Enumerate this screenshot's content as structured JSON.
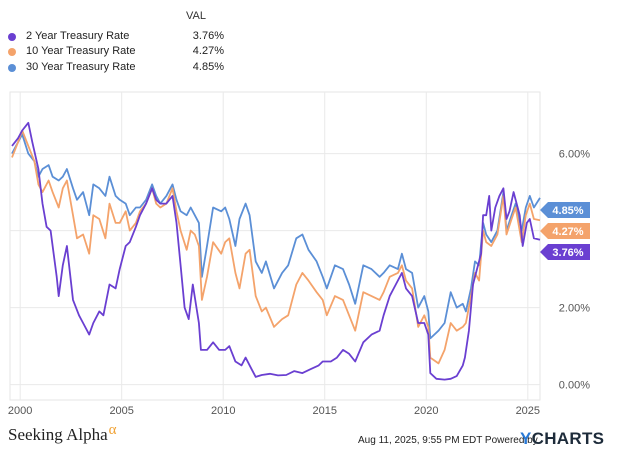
{
  "legend": {
    "header": "VAL",
    "items": [
      {
        "name": "2 Year Treasury Rate",
        "value": "3.76%",
        "color": "#6a3fd1"
      },
      {
        "name": "10 Year Treasury Rate",
        "value": "4.27%",
        "color": "#f4a36b"
      },
      {
        "name": "30 Year Treasury Rate",
        "value": "4.85%",
        "color": "#5b8fd6"
      }
    ]
  },
  "footer": {
    "brand": "Seeking Alpha",
    "brand_symbol": "α",
    "timestamp": "Aug 11, 2025, 9:55 PM EDT Powered by",
    "ycharts_y": "Y",
    "ycharts_rest": "CHARTS"
  },
  "chart_data": {
    "type": "line",
    "xlim": [
      1999.5,
      2025.6
    ],
    "ylim": [
      -0.4,
      7.6
    ],
    "x_ticks": [
      2000,
      2005,
      2010,
      2015,
      2020,
      2025
    ],
    "x_tick_labels": [
      "2000",
      "2005",
      "2010",
      "2015",
      "2020",
      "2025"
    ],
    "y_ticks": [
      0,
      2,
      4,
      6
    ],
    "y_tick_labels": [
      "0.00%",
      "2.00%",
      "4.00%",
      "6.00%"
    ],
    "grid": true,
    "legend_position": "top-left",
    "end_labels": [
      "4.85%",
      "4.27%",
      "3.76%"
    ],
    "series": [
      {
        "name": "2 Year Treasury Rate",
        "color": "#6a3fd1",
        "points": [
          [
            1999.6,
            6.2
          ],
          [
            1999.9,
            6.4
          ],
          [
            2000.1,
            6.6
          ],
          [
            2000.4,
            6.8
          ],
          [
            2000.6,
            6.3
          ],
          [
            2000.9,
            5.6
          ],
          [
            2001.1,
            4.7
          ],
          [
            2001.3,
            4.1
          ],
          [
            2001.5,
            4.0
          ],
          [
            2001.8,
            2.8
          ],
          [
            2001.9,
            2.3
          ],
          [
            2002.1,
            3.1
          ],
          [
            2002.3,
            3.6
          ],
          [
            2002.6,
            2.2
          ],
          [
            2002.9,
            1.8
          ],
          [
            2003.1,
            1.6
          ],
          [
            2003.4,
            1.3
          ],
          [
            2003.6,
            1.6
          ],
          [
            2003.9,
            1.9
          ],
          [
            2004.1,
            1.8
          ],
          [
            2004.4,
            2.6
          ],
          [
            2004.7,
            2.5
          ],
          [
            2004.9,
            3.0
          ],
          [
            2005.2,
            3.6
          ],
          [
            2005.4,
            3.7
          ],
          [
            2005.7,
            4.1
          ],
          [
            2005.9,
            4.4
          ],
          [
            2006.2,
            4.7
          ],
          [
            2006.5,
            5.1
          ],
          [
            2006.7,
            4.8
          ],
          [
            2006.9,
            4.7
          ],
          [
            2007.2,
            4.7
          ],
          [
            2007.5,
            4.9
          ],
          [
            2007.7,
            4.2
          ],
          [
            2007.9,
            3.1
          ],
          [
            2008.1,
            2.0
          ],
          [
            2008.3,
            1.7
          ],
          [
            2008.5,
            2.6
          ],
          [
            2008.8,
            1.6
          ],
          [
            2008.9,
            0.9
          ],
          [
            2009.2,
            0.9
          ],
          [
            2009.5,
            1.1
          ],
          [
            2009.8,
            0.9
          ],
          [
            2010.1,
            0.9
          ],
          [
            2010.3,
            1.0
          ],
          [
            2010.6,
            0.6
          ],
          [
            2010.9,
            0.5
          ],
          [
            2011.1,
            0.7
          ],
          [
            2011.4,
            0.4
          ],
          [
            2011.6,
            0.2
          ],
          [
            2011.9,
            0.25
          ],
          [
            2012.3,
            0.28
          ],
          [
            2012.7,
            0.24
          ],
          [
            2013.1,
            0.25
          ],
          [
            2013.5,
            0.35
          ],
          [
            2013.9,
            0.3
          ],
          [
            2014.3,
            0.4
          ],
          [
            2014.7,
            0.5
          ],
          [
            2014.9,
            0.6
          ],
          [
            2015.3,
            0.6
          ],
          [
            2015.6,
            0.7
          ],
          [
            2015.9,
            0.9
          ],
          [
            2016.2,
            0.8
          ],
          [
            2016.5,
            0.6
          ],
          [
            2016.9,
            1.1
          ],
          [
            2017.3,
            1.3
          ],
          [
            2017.7,
            1.4
          ],
          [
            2017.9,
            1.8
          ],
          [
            2018.2,
            2.3
          ],
          [
            2018.5,
            2.6
          ],
          [
            2018.8,
            2.9
          ],
          [
            2019.0,
            2.5
          ],
          [
            2019.3,
            2.3
          ],
          [
            2019.6,
            1.6
          ],
          [
            2019.9,
            1.6
          ],
          [
            2020.1,
            1.3
          ],
          [
            2020.2,
            0.3
          ],
          [
            2020.5,
            0.15
          ],
          [
            2020.9,
            0.13
          ],
          [
            2021.2,
            0.15
          ],
          [
            2021.5,
            0.22
          ],
          [
            2021.8,
            0.5
          ],
          [
            2021.9,
            0.7
          ],
          [
            2022.1,
            1.4
          ],
          [
            2022.3,
            2.6
          ],
          [
            2022.5,
            3.0
          ],
          [
            2022.7,
            3.4
          ],
          [
            2022.8,
            4.4
          ],
          [
            2022.95,
            4.4
          ],
          [
            2023.1,
            4.9
          ],
          [
            2023.2,
            4.0
          ],
          [
            2023.4,
            4.6
          ],
          [
            2023.6,
            4.9
          ],
          [
            2023.8,
            5.1
          ],
          [
            2023.95,
            4.3
          ],
          [
            2024.1,
            4.5
          ],
          [
            2024.3,
            5.0
          ],
          [
            2024.6,
            4.4
          ],
          [
            2024.75,
            3.6
          ],
          [
            2024.95,
            4.2
          ],
          [
            2025.1,
            4.3
          ],
          [
            2025.3,
            3.8
          ],
          [
            2025.6,
            3.76
          ]
        ]
      },
      {
        "name": "10 Year Treasury Rate",
        "color": "#f4a36b",
        "points": [
          [
            1999.6,
            5.9
          ],
          [
            1999.9,
            6.3
          ],
          [
            2000.1,
            6.6
          ],
          [
            2000.4,
            6.2
          ],
          [
            2000.7,
            5.8
          ],
          [
            2000.9,
            5.2
          ],
          [
            2001.1,
            5.0
          ],
          [
            2001.4,
            5.3
          ],
          [
            2001.6,
            5.0
          ],
          [
            2001.9,
            4.6
          ],
          [
            2002.1,
            5.1
          ],
          [
            2002.3,
            5.3
          ],
          [
            2002.6,
            4.4
          ],
          [
            2002.8,
            3.8
          ],
          [
            2003.1,
            3.9
          ],
          [
            2003.4,
            3.4
          ],
          [
            2003.6,
            4.4
          ],
          [
            2003.9,
            4.3
          ],
          [
            2004.2,
            3.8
          ],
          [
            2004.4,
            4.7
          ],
          [
            2004.7,
            4.2
          ],
          [
            2004.9,
            4.2
          ],
          [
            2005.2,
            4.5
          ],
          [
            2005.4,
            4.0
          ],
          [
            2005.7,
            4.2
          ],
          [
            2005.9,
            4.5
          ],
          [
            2006.2,
            4.7
          ],
          [
            2006.5,
            5.1
          ],
          [
            2006.7,
            4.7
          ],
          [
            2006.9,
            4.6
          ],
          [
            2007.2,
            4.7
          ],
          [
            2007.5,
            5.1
          ],
          [
            2007.7,
            4.5
          ],
          [
            2007.9,
            4.0
          ],
          [
            2008.2,
            3.5
          ],
          [
            2008.4,
            4.0
          ],
          [
            2008.6,
            3.9
          ],
          [
            2008.8,
            3.6
          ],
          [
            2008.95,
            2.2
          ],
          [
            2009.2,
            2.8
          ],
          [
            2009.5,
            3.7
          ],
          [
            2009.9,
            3.4
          ],
          [
            2010.1,
            3.7
          ],
          [
            2010.3,
            3.8
          ],
          [
            2010.6,
            2.9
          ],
          [
            2010.8,
            2.5
          ],
          [
            2011.1,
            3.4
          ],
          [
            2011.3,
            3.5
          ],
          [
            2011.6,
            2.3
          ],
          [
            2011.9,
            1.9
          ],
          [
            2012.1,
            2.0
          ],
          [
            2012.5,
            1.5
          ],
          [
            2012.9,
            1.7
          ],
          [
            2013.2,
            1.8
          ],
          [
            2013.6,
            2.6
          ],
          [
            2013.9,
            2.9
          ],
          [
            2014.2,
            2.7
          ],
          [
            2014.6,
            2.4
          ],
          [
            2014.9,
            2.2
          ],
          [
            2015.1,
            1.8
          ],
          [
            2015.5,
            2.3
          ],
          [
            2015.9,
            2.2
          ],
          [
            2016.2,
            1.8
          ],
          [
            2016.5,
            1.4
          ],
          [
            2016.9,
            2.4
          ],
          [
            2017.3,
            2.3
          ],
          [
            2017.7,
            2.2
          ],
          [
            2017.9,
            2.4
          ],
          [
            2018.2,
            2.8
          ],
          [
            2018.6,
            2.9
          ],
          [
            2018.8,
            3.1
          ],
          [
            2019.0,
            2.7
          ],
          [
            2019.3,
            2.5
          ],
          [
            2019.6,
            1.5
          ],
          [
            2019.9,
            1.8
          ],
          [
            2020.1,
            1.5
          ],
          [
            2020.2,
            0.7
          ],
          [
            2020.6,
            0.55
          ],
          [
            2020.9,
            0.9
          ],
          [
            2021.2,
            1.6
          ],
          [
            2021.5,
            1.4
          ],
          [
            2021.8,
            1.5
          ],
          [
            2021.95,
            1.6
          ],
          [
            2022.2,
            2.3
          ],
          [
            2022.4,
            2.9
          ],
          [
            2022.6,
            2.7
          ],
          [
            2022.8,
            4.0
          ],
          [
            2022.95,
            3.7
          ],
          [
            2023.2,
            3.6
          ],
          [
            2023.5,
            3.9
          ],
          [
            2023.8,
            4.9
          ],
          [
            2023.95,
            3.9
          ],
          [
            2024.2,
            4.3
          ],
          [
            2024.4,
            4.6
          ],
          [
            2024.7,
            3.7
          ],
          [
            2024.9,
            4.4
          ],
          [
            2025.1,
            4.7
          ],
          [
            2025.3,
            4.3
          ],
          [
            2025.6,
            4.27
          ]
        ]
      },
      {
        "name": "30 Year Treasury Rate",
        "color": "#5b8fd6",
        "points": [
          [
            1999.6,
            6.0
          ],
          [
            1999.9,
            6.3
          ],
          [
            2000.1,
            6.5
          ],
          [
            2000.4,
            6.0
          ],
          [
            2000.7,
            5.8
          ],
          [
            2000.9,
            5.4
          ],
          [
            2001.1,
            5.6
          ],
          [
            2001.4,
            5.7
          ],
          [
            2001.6,
            5.4
          ],
          [
            2001.9,
            5.3
          ],
          [
            2002.1,
            5.4
          ],
          [
            2002.3,
            5.6
          ],
          [
            2002.6,
            5.1
          ],
          [
            2002.8,
            4.8
          ],
          [
            2003.1,
            5.0
          ],
          [
            2003.4,
            4.4
          ],
          [
            2003.6,
            5.2
          ],
          [
            2003.9,
            5.1
          ],
          [
            2004.2,
            4.9
          ],
          [
            2004.4,
            5.4
          ],
          [
            2004.7,
            4.9
          ],
          [
            2004.9,
            4.8
          ],
          [
            2005.2,
            4.7
          ],
          [
            2005.4,
            4.4
          ],
          [
            2005.7,
            4.6
          ],
          [
            2005.9,
            4.6
          ],
          [
            2006.2,
            4.8
          ],
          [
            2006.5,
            5.2
          ],
          [
            2006.7,
            4.9
          ],
          [
            2006.9,
            4.7
          ],
          [
            2007.2,
            4.9
          ],
          [
            2007.5,
            5.2
          ],
          [
            2007.7,
            4.8
          ],
          [
            2007.9,
            4.5
          ],
          [
            2008.2,
            4.4
          ],
          [
            2008.4,
            4.6
          ],
          [
            2008.6,
            4.4
          ],
          [
            2008.8,
            4.2
          ],
          [
            2008.95,
            2.8
          ],
          [
            2009.2,
            3.6
          ],
          [
            2009.5,
            4.6
          ],
          [
            2009.9,
            4.5
          ],
          [
            2010.1,
            4.6
          ],
          [
            2010.3,
            4.3
          ],
          [
            2010.6,
            3.6
          ],
          [
            2010.8,
            4.3
          ],
          [
            2011.1,
            4.7
          ],
          [
            2011.3,
            4.4
          ],
          [
            2011.6,
            3.2
          ],
          [
            2011.9,
            2.9
          ],
          [
            2012.1,
            3.2
          ],
          [
            2012.5,
            2.5
          ],
          [
            2012.9,
            2.9
          ],
          [
            2013.2,
            3.1
          ],
          [
            2013.6,
            3.8
          ],
          [
            2013.9,
            3.9
          ],
          [
            2014.2,
            3.5
          ],
          [
            2014.6,
            3.2
          ],
          [
            2014.9,
            2.8
          ],
          [
            2015.1,
            2.5
          ],
          [
            2015.5,
            3.1
          ],
          [
            2015.9,
            3.0
          ],
          [
            2016.2,
            2.6
          ],
          [
            2016.5,
            2.1
          ],
          [
            2016.9,
            3.1
          ],
          [
            2017.3,
            3.0
          ],
          [
            2017.7,
            2.8
          ],
          [
            2017.9,
            2.9
          ],
          [
            2018.2,
            3.1
          ],
          [
            2018.6,
            3.0
          ],
          [
            2018.8,
            3.4
          ],
          [
            2019.0,
            3.0
          ],
          [
            2019.3,
            2.9
          ],
          [
            2019.6,
            2.0
          ],
          [
            2019.9,
            2.3
          ],
          [
            2020.1,
            1.9
          ],
          [
            2020.2,
            1.2
          ],
          [
            2020.6,
            1.4
          ],
          [
            2020.9,
            1.6
          ],
          [
            2021.2,
            2.4
          ],
          [
            2021.5,
            2.0
          ],
          [
            2021.8,
            2.1
          ],
          [
            2021.95,
            1.9
          ],
          [
            2022.2,
            2.5
          ],
          [
            2022.4,
            3.2
          ],
          [
            2022.6,
            3.1
          ],
          [
            2022.8,
            4.2
          ],
          [
            2022.95,
            3.9
          ],
          [
            2023.2,
            3.7
          ],
          [
            2023.5,
            4.0
          ],
          [
            2023.8,
            5.0
          ],
          [
            2023.95,
            4.0
          ],
          [
            2024.2,
            4.4
          ],
          [
            2024.4,
            4.7
          ],
          [
            2024.7,
            4.0
          ],
          [
            2024.9,
            4.6
          ],
          [
            2025.1,
            4.9
          ],
          [
            2025.3,
            4.6
          ],
          [
            2025.6,
            4.85
          ]
        ]
      }
    ]
  }
}
